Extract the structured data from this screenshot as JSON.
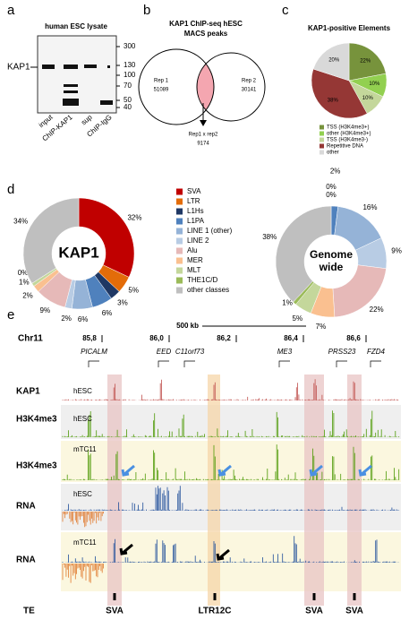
{
  "panel_a": {
    "label": "a",
    "title": "human ESC lysate",
    "protein": "KAP1",
    "markers": [
      300,
      130,
      100,
      70,
      50,
      40
    ],
    "lanes": [
      "input",
      "ChIP-KAP1",
      "sup",
      "ChIP-IgG"
    ]
  },
  "panel_b": {
    "label": "b",
    "title": [
      "KAP1 ChIP-seq hESC",
      "MACS peaks"
    ],
    "rep1": {
      "name": "Rep 1",
      "count": 51089
    },
    "rep2": {
      "name": "Rep 2",
      "count": 30141
    },
    "overlap": {
      "name": "Rep1 x rep2",
      "count": 9174
    }
  },
  "panel_c": {
    "label": "c"
  },
  "panel_d": {
    "label": "d"
  },
  "chart_data": [
    {
      "type": "pie",
      "title": "KAP1-positive Elements",
      "categories": [
        "TSS (H3K4me3+)",
        "other (H3K4me3+)",
        "TSS (H3K4me3-)",
        "Repetitive DNA",
        "other"
      ],
      "values": [
        22,
        10,
        10,
        38,
        20
      ],
      "value_labels": [
        "22%",
        "10%",
        "10%",
        "38%",
        "20%"
      ],
      "colors": [
        "#77933c",
        "#92d050",
        "#c4d79b",
        "#953735",
        "#d9d9d9"
      ]
    },
    {
      "type": "donut",
      "title": [
        "KAP1"
      ],
      "categories": [
        "SVA",
        "LTR",
        "L1Hs",
        "L1PA",
        "LINE 1 (other)",
        "LINE 2",
        "Alu",
        "MER",
        "MLT",
        "THE1C/D",
        "other classes"
      ],
      "values": [
        32,
        5,
        3,
        6,
        6,
        2,
        9,
        2,
        1,
        0,
        34
      ],
      "value_labels": [
        "32%",
        "5%",
        "3%",
        "6%",
        "6%",
        "2%",
        "9%",
        "2%",
        "1%",
        "0%",
        "34%"
      ],
      "colors": [
        "#c00000",
        "#e36c09",
        "#1f3864",
        "#4f81bd",
        "#95b3d7",
        "#b8cce4",
        "#e6b9b8",
        "#fac090",
        "#c4d79b",
        "#9bbb59",
        "#bfbfbf"
      ]
    },
    {
      "type": "donut",
      "title": [
        "Genome",
        "wide"
      ],
      "values": [
        0,
        0,
        0,
        2,
        16,
        9,
        22,
        7,
        5,
        1,
        38
      ],
      "value_labels": [
        "0%",
        "0%",
        null,
        "2%",
        "16%",
        "9%",
        "22%",
        "7%",
        "5%",
        "1%",
        "38%"
      ]
    }
  ],
  "panel_e": {
    "label": "e",
    "scale": "500 kb",
    "chromosome": "Chr11",
    "coordinates": [
      "85,8",
      "86,0",
      "86,2",
      "86,4",
      "86,6"
    ],
    "genes": [
      "PICALM",
      "EED",
      "C11orf73",
      "ME3",
      "PRSS23",
      "FZD4"
    ],
    "tracks": [
      {
        "name": "KAP1",
        "sample": "hESC"
      },
      {
        "name": "H3K4me3",
        "sample": "hESC"
      },
      {
        "name": "H3K4me3",
        "sample": "mTC11"
      },
      {
        "name": "RNA",
        "sample": "hESC"
      },
      {
        "name": "RNA",
        "sample": "mTC11"
      }
    ],
    "te_track": "TE",
    "elements": [
      "SVA",
      "LTR12C",
      "SVA",
      "SVA"
    ]
  }
}
